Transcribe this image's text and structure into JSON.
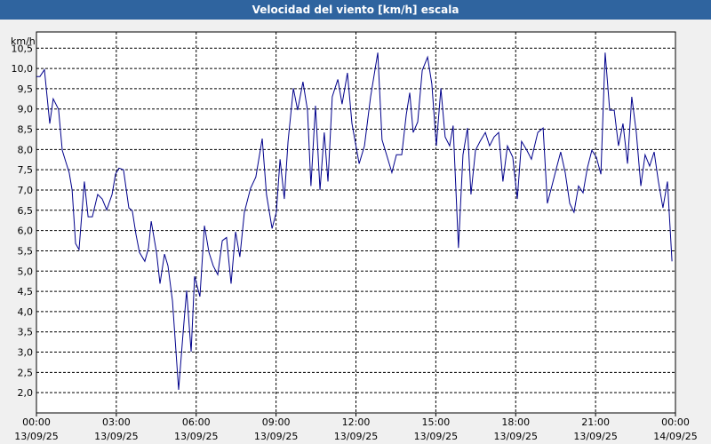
{
  "chart_data": {
    "type": "line",
    "title": "Velocidad del viento [km/h] escala",
    "y_label": "km/h",
    "xlim": [
      0,
      24
    ],
    "ylim": [
      1.5,
      10.9
    ],
    "xticks": [
      {
        "value": 0,
        "label": "00:00\n13/09/25"
      },
      {
        "value": 3,
        "label": "03:00\n13/09/25"
      },
      {
        "value": 6,
        "label": "06:00\n13/09/25"
      },
      {
        "value": 9,
        "label": "09:00\n13/09/25"
      },
      {
        "value": 12,
        "label": "12:00\n13/09/25"
      },
      {
        "value": 15,
        "label": "15:00\n13/09/25"
      },
      {
        "value": 18,
        "label": "18:00\n13/09/25"
      },
      {
        "value": 21,
        "label": "21:00\n13/09/25"
      },
      {
        "value": 24,
        "label": "00:00\n14/09/25"
      }
    ],
    "yticks": [
      {
        "value": 2,
        "label": "2,0"
      },
      {
        "value": 2.5,
        "label": "2,5"
      },
      {
        "value": 3,
        "label": "3,0"
      },
      {
        "value": 3.5,
        "label": "3,5"
      },
      {
        "value": 4,
        "label": "4,0"
      },
      {
        "value": 4.5,
        "label": "4,5"
      },
      {
        "value": 5,
        "label": "5,0"
      },
      {
        "value": 5.5,
        "label": "5,5"
      },
      {
        "value": 6,
        "label": "6,0"
      },
      {
        "value": 6.5,
        "label": "6,5"
      },
      {
        "value": 7,
        "label": "7,0"
      },
      {
        "value": 7.5,
        "label": "7,5"
      },
      {
        "value": 8,
        "label": "8,0"
      },
      {
        "value": 8.5,
        "label": "8,5"
      },
      {
        "value": 9,
        "label": "9,0"
      },
      {
        "value": 9.5,
        "label": "9,5"
      },
      {
        "value": 10,
        "label": "10,0"
      },
      {
        "value": 10.5,
        "label": "10,5"
      }
    ],
    "grid": true,
    "series": [
      {
        "color": "#00008b",
        "x": [
          0,
          0.13,
          0.3,
          0.5,
          0.63,
          0.83,
          0.97,
          1.1,
          1.23,
          1.34,
          1.47,
          1.6,
          1.8,
          1.94,
          2.1,
          2.3,
          2.47,
          2.64,
          2.84,
          2.97,
          3.1,
          3.27,
          3.47,
          3.6,
          3.74,
          3.87,
          4.07,
          4.21,
          4.31,
          4.51,
          4.64,
          4.81,
          4.94,
          5.11,
          5.34,
          5.51,
          5.64,
          5.81,
          5.94,
          6.14,
          6.31,
          6.48,
          6.64,
          6.81,
          6.98,
          7.14,
          7.31,
          7.48,
          7.64,
          7.81,
          8.04,
          8.24,
          8.48,
          8.64,
          8.85,
          9.01,
          9.15,
          9.31,
          9.45,
          9.65,
          9.81,
          10.01,
          10.18,
          10.31,
          10.48,
          10.65,
          10.81,
          10.95,
          11.11,
          11.32,
          11.48,
          11.68,
          11.85,
          12.12,
          12.32,
          12.55,
          12.82,
          12.98,
          13.15,
          13.35,
          13.52,
          13.72,
          13.89,
          14.02,
          14.15,
          14.32,
          14.49,
          14.69,
          14.85,
          15.02,
          15.19,
          15.35,
          15.52,
          15.65,
          15.85,
          16.02,
          16.19,
          16.32,
          16.49,
          16.66,
          16.86,
          17.02,
          17.19,
          17.36,
          17.52,
          17.69,
          17.89,
          18.06,
          18.22,
          18.42,
          18.59,
          18.83,
          19.03,
          19.19,
          19.36,
          19.53,
          19.69,
          19.86,
          20.03,
          20.19,
          20.36,
          20.53,
          20.69,
          20.86,
          21.03,
          21.2,
          21.36,
          21.53,
          21.7,
          21.86,
          22.03,
          22.2,
          22.36,
          22.53,
          22.7,
          22.86,
          23.03,
          23.2,
          23.36,
          23.53,
          23.7,
          23.87
        ],
        "values": [
          9.8,
          9.8,
          9.97,
          8.64,
          9.25,
          8.99,
          7.98,
          7.7,
          7.43,
          7.0,
          5.68,
          5.53,
          7.21,
          6.34,
          6.34,
          6.89,
          6.78,
          6.51,
          6.89,
          7.39,
          7.54,
          7.5,
          6.56,
          6.49,
          5.9,
          5.46,
          5.24,
          5.57,
          6.23,
          5.46,
          4.69,
          5.42,
          5.13,
          4.26,
          2.07,
          3.49,
          4.52,
          3.01,
          4.87,
          4.37,
          6.12,
          5.46,
          5.13,
          4.91,
          5.75,
          5.83,
          4.69,
          5.97,
          5.35,
          6.45,
          7.04,
          7.32,
          8.27,
          6.89,
          6.05,
          6.45,
          7.76,
          6.78,
          8.2,
          9.51,
          8.97,
          9.67,
          8.97,
          7.1,
          9.08,
          7.0,
          8.42,
          7.21,
          9.3,
          9.73,
          9.12,
          9.89,
          8.64,
          7.65,
          8.09,
          9.3,
          10.39,
          8.24,
          7.87,
          7.43,
          7.87,
          7.87,
          8.86,
          9.4,
          8.42,
          8.68,
          9.95,
          10.28,
          9.62,
          8.09,
          9.51,
          8.31,
          8.09,
          8.59,
          5.57,
          7.87,
          8.53,
          6.89,
          7.98,
          8.2,
          8.42,
          8.09,
          8.31,
          8.42,
          7.21,
          8.09,
          7.81,
          6.78,
          8.2,
          7.98,
          7.76,
          8.42,
          8.53,
          6.67,
          7.1,
          7.54,
          7.94,
          7.43,
          6.67,
          6.45,
          7.1,
          6.93,
          7.54,
          7.98,
          7.81,
          7.39,
          10.39,
          8.97,
          8.97,
          8.09,
          8.64,
          7.65,
          9.3,
          8.42,
          7.1,
          7.87,
          7.59,
          7.94,
          7.21,
          6.56,
          7.21,
          5.24
        ]
      }
    ]
  }
}
